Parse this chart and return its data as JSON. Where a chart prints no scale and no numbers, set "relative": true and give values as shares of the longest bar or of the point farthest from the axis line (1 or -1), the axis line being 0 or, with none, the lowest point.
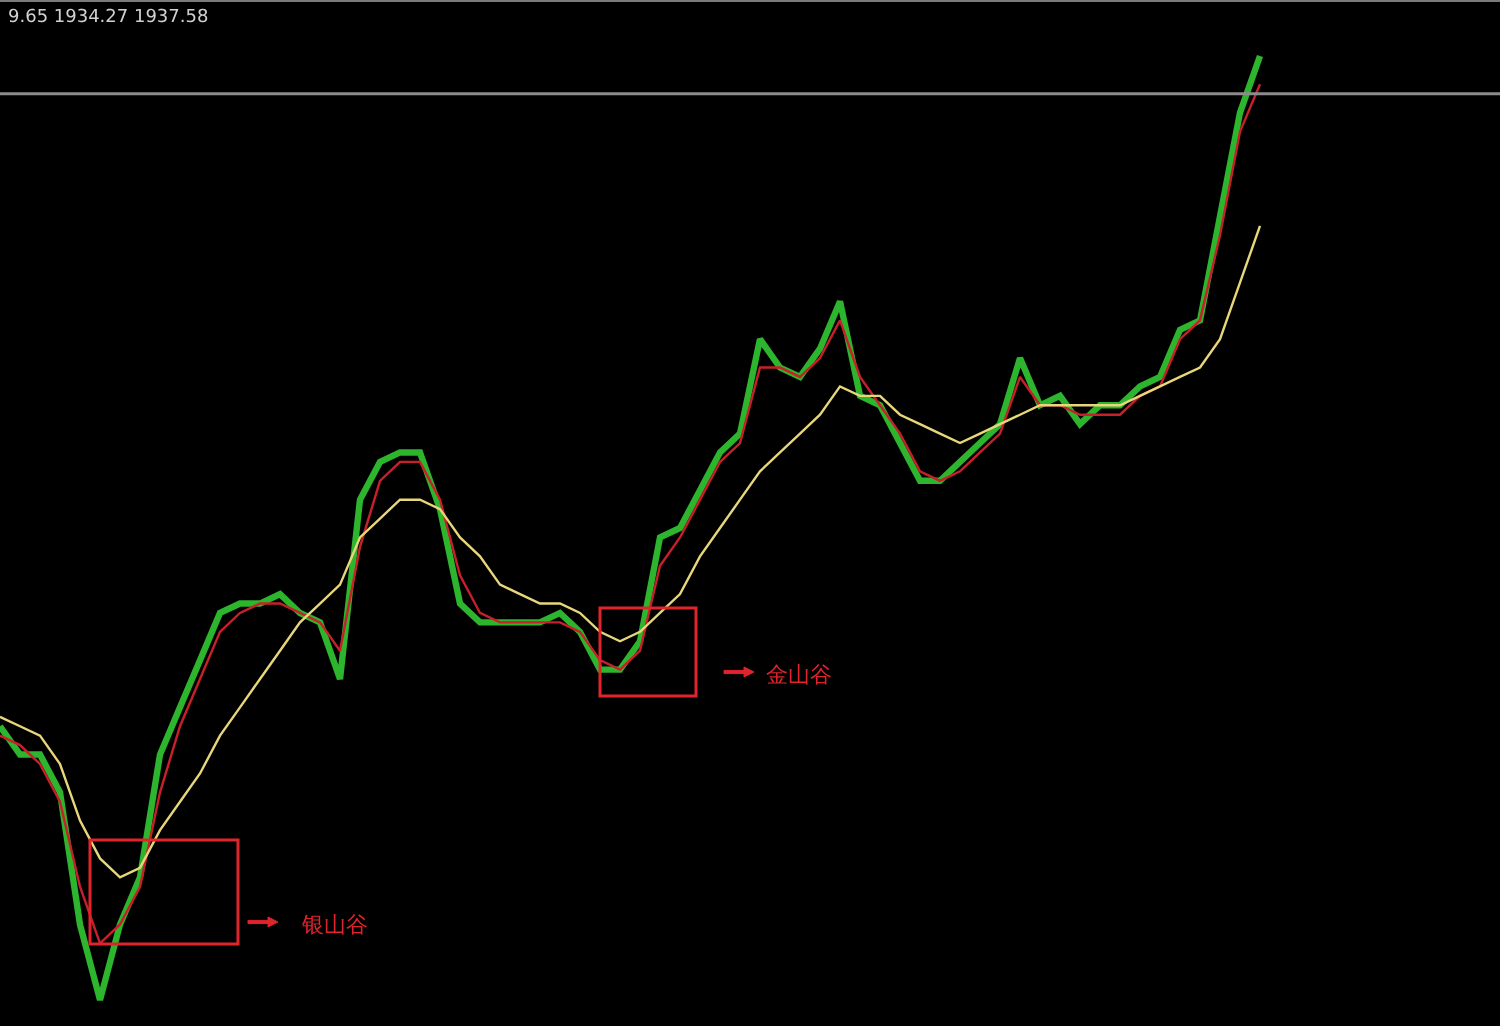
{
  "chart_data": {
    "type": "line",
    "relative": true,
    "grid": false,
    "tick_labels": false,
    "categories": [
      null,
      null,
      null,
      null,
      null,
      null,
      null,
      null,
      null,
      null,
      null,
      null,
      null,
      null,
      null,
      null,
      null,
      null,
      null,
      null,
      null,
      null,
      null,
      null,
      null,
      null,
      null,
      null,
      null,
      null,
      null,
      null,
      null,
      null,
      null,
      null,
      null,
      null,
      null,
      null,
      null,
      null,
      null,
      null,
      null,
      null,
      null,
      null,
      null,
      null,
      null,
      null,
      null,
      null,
      null,
      null,
      null,
      null,
      null,
      null,
      null,
      null,
      null,
      null
    ],
    "series": [
      {
        "color": "#2db52d",
        "values": [
          0.29,
          0.26,
          0.26,
          0.22,
          0.08,
          0,
          0.08,
          0.13,
          0.26,
          0.31,
          0.36,
          0.41,
          0.42,
          0.42,
          0.43,
          0.41,
          0.4,
          0.34,
          0.53,
          0.57,
          0.58,
          0.58,
          0.52,
          0.42,
          0.4,
          0.4,
          0.4,
          0.4,
          0.41,
          0.39,
          0.35,
          0.35,
          0.38,
          0.49,
          0.5,
          0.54,
          0.58,
          0.6,
          0.7,
          0.67,
          0.66,
          0.69,
          0.74,
          0.64,
          0.63,
          0.59,
          0.55,
          0.55,
          0.57,
          0.59,
          0.61,
          0.68,
          0.63,
          0.64,
          0.61,
          0.63,
          0.63,
          0.65,
          0.66,
          0.71,
          0.72,
          0.83,
          0.94,
          1
        ]
      },
      {
        "color": "#c8202a",
        "values": [
          0.28,
          0.27,
          0.25,
          0.21,
          0.12,
          0.06,
          0.08,
          0.12,
          0.22,
          0.29,
          0.34,
          0.39,
          0.41,
          0.42,
          0.42,
          0.41,
          0.4,
          0.37,
          0.48,
          0.55,
          0.57,
          0.57,
          0.53,
          0.45,
          0.41,
          0.4,
          0.4,
          0.4,
          0.4,
          0.39,
          0.36,
          0.35,
          0.37,
          0.46,
          0.49,
          0.53,
          0.57,
          0.59,
          0.67,
          0.67,
          0.66,
          0.68,
          0.72,
          0.66,
          0.63,
          0.6,
          0.56,
          0.55,
          0.56,
          0.58,
          0.6,
          0.66,
          0.63,
          0.63,
          0.62,
          0.62,
          0.62,
          0.64,
          0.65,
          0.7,
          0.72,
          0.81,
          0.92,
          0.97
        ]
      },
      {
        "color": "#e8d77a",
        "values": [
          0.3,
          0.29,
          0.28,
          0.25,
          0.19,
          0.15,
          0.13,
          0.14,
          0.18,
          0.21,
          0.24,
          0.28,
          0.31,
          0.34,
          0.37,
          0.4,
          0.42,
          0.44,
          0.49,
          0.51,
          0.53,
          0.53,
          0.52,
          0.49,
          0.47,
          0.44,
          0.43,
          0.42,
          0.42,
          0.41,
          0.39,
          0.38,
          0.39,
          0.41,
          0.43,
          0.47,
          0.5,
          0.53,
          0.56,
          0.58,
          0.6,
          0.62,
          0.65,
          0.64,
          0.64,
          0.62,
          0.61,
          0.6,
          0.59,
          0.6,
          0.61,
          0.62,
          0.63,
          0.63,
          0.63,
          0.63,
          0.63,
          0.64,
          0.65,
          0.66,
          0.67,
          0.7,
          0.76,
          0.82
        ]
      }
    ],
    "ref_lines": [
      {
        "axis": "y",
        "value": 0.96,
        "color": "#8c8c8c"
      }
    ],
    "annotations": [
      "9.65 1934.27 1937.58",
      "金山谷",
      "银山谷"
    ]
  }
}
